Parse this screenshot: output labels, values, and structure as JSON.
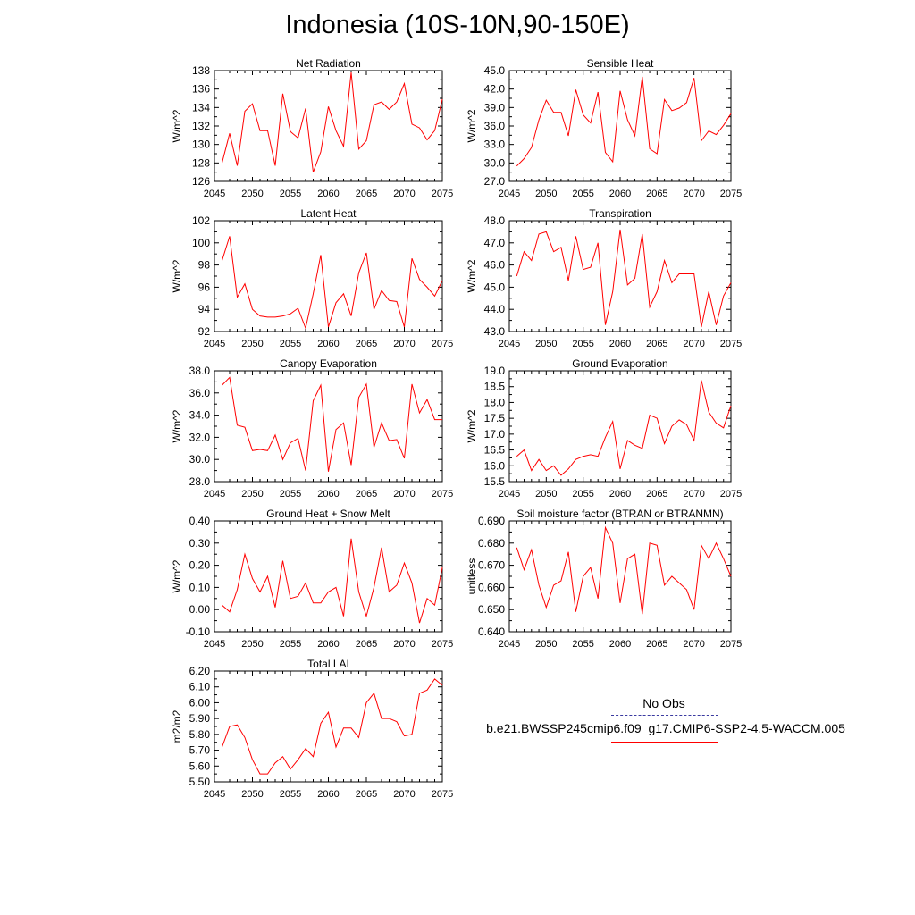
{
  "title": "Indonesia (10S-10N,90-150E)",
  "colors": {
    "series": "#ff0000",
    "axis": "#000000",
    "obs": "#3a3aa0"
  },
  "legend": {
    "obs_label": "No Obs",
    "model_label": "b.e21.BWSSP245cmip6.f09_g17.CMIP6-SSP2-4.5-WACCM.005"
  },
  "chart_data": [
    {
      "type": "line",
      "title": "Net Radiation",
      "ylabel": "W/m^2",
      "xlabel": "",
      "xlim": [
        2045,
        2075
      ],
      "xticks": [
        "2045",
        "2050",
        "2055",
        "2060",
        "2065",
        "2070",
        "2075"
      ],
      "ylim": [
        126,
        138
      ],
      "yticks": [
        "126",
        "128",
        "130",
        "132",
        "134",
        "136",
        "138"
      ],
      "series": [
        {
          "name": "b.e21.BWSSP245cmip6.f09_g17.CMIP6-SSP2-4.5-WACCM.005",
          "x": [
            2046,
            2047,
            2048,
            2049,
            2050,
            2051,
            2052,
            2053,
            2054,
            2055,
            2056,
            2057,
            2058,
            2059,
            2060,
            2061,
            2062,
            2063,
            2064,
            2065,
            2066,
            2067,
            2068,
            2069,
            2070,
            2071,
            2072,
            2073,
            2074,
            2075
          ],
          "values": [
            128.0,
            131.2,
            127.7,
            133.6,
            134.4,
            131.5,
            131.5,
            127.7,
            135.5,
            131.4,
            130.7,
            133.9,
            127.0,
            129.2,
            134.1,
            131.5,
            129.8,
            137.8,
            129.5,
            130.4,
            134.3,
            134.6,
            133.8,
            134.6,
            136.6,
            132.2,
            131.8,
            130.5,
            131.5,
            134.9
          ]
        }
      ]
    },
    {
      "type": "line",
      "title": "Sensible Heat",
      "ylabel": "W/m^2",
      "xlabel": "",
      "xlim": [
        2045,
        2075
      ],
      "xticks": [
        "2045",
        "2050",
        "2055",
        "2060",
        "2065",
        "2070",
        "2075"
      ],
      "ylim": [
        27.0,
        45.0
      ],
      "yticks": [
        "27.0",
        "30.0",
        "33.0",
        "36.0",
        "39.0",
        "42.0",
        "45.0"
      ],
      "series": [
        {
          "name": "b.e21.BWSSP245cmip6.f09_g17.CMIP6-SSP2-4.5-WACCM.005",
          "x": [
            2046,
            2047,
            2048,
            2049,
            2050,
            2051,
            2052,
            2053,
            2054,
            2055,
            2056,
            2057,
            2058,
            2059,
            2060,
            2061,
            2062,
            2063,
            2064,
            2065,
            2066,
            2067,
            2068,
            2069,
            2070,
            2071,
            2072,
            2073,
            2074,
            2075
          ],
          "values": [
            29.5,
            30.7,
            32.5,
            37.0,
            40.2,
            38.2,
            38.2,
            34.4,
            41.9,
            37.8,
            36.5,
            41.5,
            31.7,
            30.2,
            41.7,
            37.0,
            34.4,
            44.0,
            32.3,
            31.5,
            40.3,
            38.5,
            38.9,
            39.8,
            43.8,
            33.6,
            35.2,
            34.6,
            36.1,
            38.0
          ]
        }
      ]
    },
    {
      "type": "line",
      "title": "Latent Heat",
      "ylabel": "W/m^2",
      "xlabel": "",
      "xlim": [
        2045,
        2075
      ],
      "xticks": [
        "2045",
        "2050",
        "2055",
        "2060",
        "2065",
        "2070",
        "2075"
      ],
      "ylim": [
        92,
        102
      ],
      "yticks": [
        "92",
        "94",
        "96",
        "98",
        "100",
        "102"
      ],
      "series": [
        {
          "name": "b.e21.BWSSP245cmip6.f09_g17.CMIP6-SSP2-4.5-WACCM.005",
          "x": [
            2046,
            2047,
            2048,
            2049,
            2050,
            2051,
            2052,
            2053,
            2054,
            2055,
            2056,
            2057,
            2058,
            2059,
            2060,
            2061,
            2062,
            2063,
            2064,
            2065,
            2066,
            2067,
            2068,
            2069,
            2070,
            2071,
            2072,
            2073,
            2074,
            2075
          ],
          "values": [
            98.4,
            100.6,
            95.1,
            96.3,
            94.0,
            93.4,
            93.3,
            93.3,
            93.4,
            93.6,
            94.1,
            92.3,
            95.4,
            98.9,
            92.4,
            94.6,
            95.4,
            93.4,
            97.3,
            99.1,
            94.0,
            95.7,
            94.8,
            94.7,
            92.4,
            98.6,
            96.7,
            96.0,
            95.2,
            96.6
          ]
        }
      ]
    },
    {
      "type": "line",
      "title": "Transpiration",
      "ylabel": "W/m^2",
      "xlabel": "",
      "xlim": [
        2045,
        2075
      ],
      "xticks": [
        "2045",
        "2050",
        "2055",
        "2060",
        "2065",
        "2070",
        "2075"
      ],
      "ylim": [
        43.0,
        48.0
      ],
      "yticks": [
        "43.0",
        "44.0",
        "45.0",
        "46.0",
        "47.0",
        "48.0"
      ],
      "series": [
        {
          "name": "b.e21.BWSSP245cmip6.f09_g17.CMIP6-SSP2-4.5-WACCM.005",
          "x": [
            2046,
            2047,
            2048,
            2049,
            2050,
            2051,
            2052,
            2053,
            2054,
            2055,
            2056,
            2057,
            2058,
            2059,
            2060,
            2061,
            2062,
            2063,
            2064,
            2065,
            2066,
            2067,
            2068,
            2069,
            2070,
            2071,
            2072,
            2073,
            2074,
            2075
          ],
          "values": [
            45.5,
            46.6,
            46.2,
            47.4,
            47.5,
            46.6,
            46.8,
            45.3,
            47.3,
            45.8,
            45.9,
            47.0,
            43.3,
            44.8,
            47.6,
            45.1,
            45.4,
            47.4,
            44.1,
            44.8,
            46.2,
            45.2,
            45.6,
            45.6,
            45.6,
            43.2,
            44.8,
            43.3,
            44.6,
            45.2
          ]
        }
      ]
    },
    {
      "type": "line",
      "title": "Canopy Evaporation",
      "ylabel": "W/m^2",
      "xlabel": "",
      "xlim": [
        2045,
        2075
      ],
      "xticks": [
        "2045",
        "2050",
        "2055",
        "2060",
        "2065",
        "2070",
        "2075"
      ],
      "ylim": [
        28.0,
        38.0
      ],
      "yticks": [
        "28.0",
        "30.0",
        "32.0",
        "34.0",
        "36.0",
        "38.0"
      ],
      "series": [
        {
          "name": "b.e21.BWSSP245cmip6.f09_g17.CMIP6-SSP2-4.5-WACCM.005",
          "x": [
            2046,
            2047,
            2048,
            2049,
            2050,
            2051,
            2052,
            2053,
            2054,
            2055,
            2056,
            2057,
            2058,
            2059,
            2060,
            2061,
            2062,
            2063,
            2064,
            2065,
            2066,
            2067,
            2068,
            2069,
            2070,
            2071,
            2072,
            2073,
            2074,
            2075
          ],
          "values": [
            36.7,
            37.4,
            33.1,
            32.9,
            30.8,
            30.9,
            30.8,
            32.2,
            30.0,
            31.5,
            31.9,
            29.0,
            35.3,
            36.7,
            28.9,
            32.7,
            33.3,
            29.5,
            35.6,
            36.8,
            31.1,
            33.3,
            31.7,
            31.8,
            30.1,
            36.8,
            34.2,
            35.4,
            33.6,
            33.6
          ]
        }
      ]
    },
    {
      "type": "line",
      "title": "Ground Evaporation",
      "ylabel": "W/m^2",
      "xlabel": "",
      "xlim": [
        2045,
        2075
      ],
      "xticks": [
        "2045",
        "2050",
        "2055",
        "2060",
        "2065",
        "2070",
        "2075"
      ],
      "ylim": [
        15.5,
        19.0
      ],
      "yticks": [
        "15.5",
        "16.0",
        "16.5",
        "17.0",
        "17.5",
        "18.0",
        "18.5",
        "19.0"
      ],
      "series": [
        {
          "name": "b.e21.BWSSP245cmip6.f09_g17.CMIP6-SSP2-4.5-WACCM.005",
          "x": [
            2046,
            2047,
            2048,
            2049,
            2050,
            2051,
            2052,
            2053,
            2054,
            2055,
            2056,
            2057,
            2058,
            2059,
            2060,
            2061,
            2062,
            2063,
            2064,
            2065,
            2066,
            2067,
            2068,
            2069,
            2070,
            2071,
            2072,
            2073,
            2074,
            2075
          ],
          "values": [
            16.3,
            16.5,
            15.85,
            16.2,
            15.85,
            16.0,
            15.7,
            15.9,
            16.2,
            16.3,
            16.35,
            16.3,
            16.9,
            17.4,
            15.9,
            16.8,
            16.65,
            16.55,
            17.6,
            17.5,
            16.7,
            17.25,
            17.45,
            17.3,
            16.8,
            18.7,
            17.7,
            17.35,
            17.2,
            17.9
          ]
        }
      ]
    },
    {
      "type": "line",
      "title": "Ground Heat + Snow Melt",
      "ylabel": "W/m^2",
      "xlabel": "",
      "xlim": [
        2045,
        2075
      ],
      "xticks": [
        "2045",
        "2050",
        "2055",
        "2060",
        "2065",
        "2070",
        "2075"
      ],
      "ylim": [
        -0.1,
        0.4
      ],
      "yticks": [
        "-0.10",
        "0.00",
        "0.10",
        "0.20",
        "0.30",
        "0.40"
      ],
      "series": [
        {
          "name": "b.e21.BWSSP245cmip6.f09_g17.CMIP6-SSP2-4.5-WACCM.005",
          "x": [
            2046,
            2047,
            2048,
            2049,
            2050,
            2051,
            2052,
            2053,
            2054,
            2055,
            2056,
            2057,
            2058,
            2059,
            2060,
            2061,
            2062,
            2063,
            2064,
            2065,
            2066,
            2067,
            2068,
            2069,
            2070,
            2071,
            2072,
            2073,
            2074,
            2075
          ],
          "values": [
            0.02,
            -0.01,
            0.09,
            0.25,
            0.14,
            0.08,
            0.15,
            0.01,
            0.22,
            0.05,
            0.06,
            0.12,
            0.03,
            0.03,
            0.08,
            0.1,
            -0.03,
            0.32,
            0.08,
            -0.03,
            0.1,
            0.28,
            0.08,
            0.11,
            0.21,
            0.12,
            -0.06,
            0.05,
            0.02,
            0.19
          ]
        }
      ]
    },
    {
      "type": "line",
      "title": "Soil moisture factor (BTRAN or BTRANMN)",
      "ylabel": "unitless",
      "xlabel": "",
      "xlim": [
        2045,
        2075
      ],
      "xticks": [
        "2045",
        "2050",
        "2055",
        "2060",
        "2065",
        "2070",
        "2075"
      ],
      "ylim": [
        0.64,
        0.69
      ],
      "yticks": [
        "0.640",
        "0.650",
        "0.660",
        "0.670",
        "0.680",
        "0.690"
      ],
      "series": [
        {
          "name": "b.e21.BWSSP245cmip6.f09_g17.CMIP6-SSP2-4.5-WACCM.005",
          "x": [
            2046,
            2047,
            2048,
            2049,
            2050,
            2051,
            2052,
            2053,
            2054,
            2055,
            2056,
            2057,
            2058,
            2059,
            2060,
            2061,
            2062,
            2063,
            2064,
            2065,
            2066,
            2067,
            2068,
            2069,
            2070,
            2071,
            2072,
            2073,
            2074,
            2075
          ],
          "values": [
            0.678,
            0.668,
            0.677,
            0.661,
            0.651,
            0.661,
            0.663,
            0.676,
            0.649,
            0.665,
            0.669,
            0.655,
            0.687,
            0.68,
            0.653,
            0.673,
            0.675,
            0.648,
            0.68,
            0.679,
            0.661,
            0.665,
            0.662,
            0.659,
            0.65,
            0.679,
            0.673,
            0.68,
            0.673,
            0.665
          ]
        }
      ]
    },
    {
      "type": "line",
      "title": "Total LAI",
      "ylabel": "m2/m2",
      "xlabel": "",
      "xlim": [
        2045,
        2075
      ],
      "xticks": [
        "2045",
        "2050",
        "2055",
        "2060",
        "2065",
        "2070",
        "2075"
      ],
      "ylim": [
        5.5,
        6.2
      ],
      "yticks": [
        "5.50",
        "5.60",
        "5.70",
        "5.80",
        "5.90",
        "6.00",
        "6.10",
        "6.20"
      ],
      "series": [
        {
          "name": "b.e21.BWSSP245cmip6.f09_g17.CMIP6-SSP2-4.5-WACCM.005",
          "x": [
            2046,
            2047,
            2048,
            2049,
            2050,
            2051,
            2052,
            2053,
            2054,
            2055,
            2056,
            2057,
            2058,
            2059,
            2060,
            2061,
            2062,
            2063,
            2064,
            2065,
            2066,
            2067,
            2068,
            2069,
            2070,
            2071,
            2072,
            2073,
            2074,
            2075
          ],
          "values": [
            5.72,
            5.85,
            5.86,
            5.78,
            5.64,
            5.55,
            5.55,
            5.62,
            5.66,
            5.58,
            5.64,
            5.71,
            5.66,
            5.87,
            5.94,
            5.72,
            5.84,
            5.84,
            5.78,
            6.0,
            6.06,
            5.9,
            5.9,
            5.88,
            5.79,
            5.8,
            6.06,
            6.08,
            6.15,
            6.11
          ]
        }
      ]
    }
  ]
}
